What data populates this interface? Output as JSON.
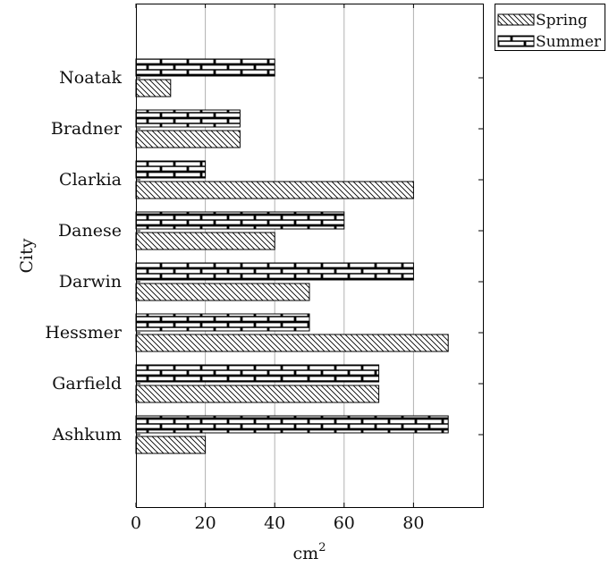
{
  "chart_data": {
    "type": "bar",
    "orientation": "horizontal",
    "categories": [
      "Ashkum",
      "Garfield",
      "Hessmer",
      "Darwin",
      "Danese",
      "Clarkia",
      "Bradner",
      "Noatak"
    ],
    "series": [
      {
        "name": "Spring",
        "values": [
          20,
          70,
          90,
          50,
          40,
          80,
          30,
          10
        ],
        "pattern": "north-west-lines"
      },
      {
        "name": "Summer",
        "values": [
          90,
          70,
          50,
          80,
          60,
          20,
          30,
          40
        ],
        "pattern": "bricks"
      }
    ],
    "xlabel": "cm",
    "xlabel_superscript": "2",
    "ylabel": "City",
    "xlim": [
      0,
      100
    ],
    "xticks": [
      0,
      20,
      40,
      60,
      80
    ],
    "grid": "vertical",
    "legend_position": "outside-top-right",
    "colors": {
      "stroke": "#000000",
      "grid": "#b0b0b0",
      "background": "#ffffff"
    }
  }
}
